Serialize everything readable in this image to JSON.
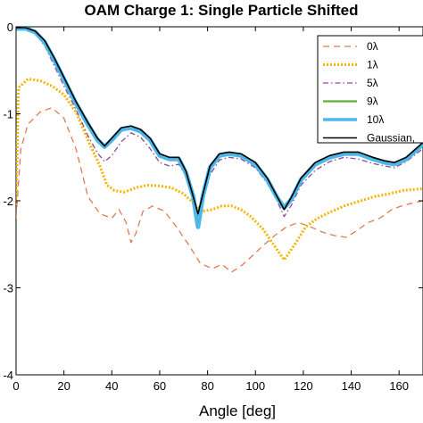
{
  "chart_data": {
    "type": "line",
    "title": "OAM Charge 1: Single Particle Shifted",
    "xlabel": "Angle [deg]",
    "ylabel": "",
    "xlim": [
      0,
      170
    ],
    "ylim": [
      -4,
      0
    ],
    "x_ticks": [
      0,
      20,
      40,
      60,
      80,
      100,
      120,
      140,
      160
    ],
    "x_tick_labels": [
      "0",
      "20",
      "40",
      "60",
      "80",
      "100",
      "120",
      "140",
      "160"
    ],
    "y_ticks": [
      0,
      -1,
      -2,
      -3,
      -4
    ],
    "y_tick_labels": [
      "0",
      "-1",
      "-2",
      "-3",
      "-4"
    ],
    "grid": false,
    "legend_position": "top-right",
    "series": [
      {
        "name": "0λ",
        "color": "#e07b4f",
        "dash": "7,5",
        "width": 1.3,
        "points": [
          [
            0,
            -2.2
          ],
          [
            2,
            -1.4
          ],
          [
            5,
            -1.12
          ],
          [
            10,
            -0.98
          ],
          [
            15,
            -0.93
          ],
          [
            20,
            -1.05
          ],
          [
            25,
            -1.4
          ],
          [
            30,
            -1.95
          ],
          [
            35,
            -2.15
          ],
          [
            40,
            -2.2
          ],
          [
            43,
            -2.1
          ],
          [
            46,
            -2.25
          ],
          [
            48,
            -2.48
          ],
          [
            50,
            -2.38
          ],
          [
            53,
            -2.12
          ],
          [
            57,
            -2.06
          ],
          [
            62,
            -2.12
          ],
          [
            67,
            -2.3
          ],
          [
            72,
            -2.5
          ],
          [
            77,
            -2.72
          ],
          [
            82,
            -2.78
          ],
          [
            86,
            -2.73
          ],
          [
            90,
            -2.82
          ],
          [
            94,
            -2.75
          ],
          [
            98,
            -2.65
          ],
          [
            103,
            -2.52
          ],
          [
            108,
            -2.4
          ],
          [
            113,
            -2.3
          ],
          [
            118,
            -2.25
          ],
          [
            123,
            -2.3
          ],
          [
            128,
            -2.36
          ],
          [
            133,
            -2.4
          ],
          [
            138,
            -2.42
          ],
          [
            142,
            -2.35
          ],
          [
            147,
            -2.25
          ],
          [
            152,
            -2.2
          ],
          [
            157,
            -2.1
          ],
          [
            162,
            -2.05
          ],
          [
            170,
            -2.0
          ]
        ]
      },
      {
        "name": "1λ",
        "color": "#f5b400",
        "dash": "2,2",
        "width": 3,
        "points": [
          [
            0,
            -2.05
          ],
          [
            1,
            -0.7
          ],
          [
            5,
            -0.6
          ],
          [
            10,
            -0.62
          ],
          [
            15,
            -0.68
          ],
          [
            20,
            -0.78
          ],
          [
            25,
            -0.98
          ],
          [
            30,
            -1.3
          ],
          [
            35,
            -1.6
          ],
          [
            38,
            -1.82
          ],
          [
            41,
            -1.88
          ],
          [
            45,
            -1.9
          ],
          [
            50,
            -1.85
          ],
          [
            55,
            -1.82
          ],
          [
            60,
            -1.83
          ],
          [
            65,
            -1.85
          ],
          [
            70,
            -1.92
          ],
          [
            75,
            -2.05
          ],
          [
            78,
            -2.12
          ],
          [
            82,
            -2.1
          ],
          [
            86,
            -2.06
          ],
          [
            90,
            -2.06
          ],
          [
            94,
            -2.1
          ],
          [
            98,
            -2.18
          ],
          [
            103,
            -2.32
          ],
          [
            108,
            -2.52
          ],
          [
            112,
            -2.68
          ],
          [
            116,
            -2.52
          ],
          [
            121,
            -2.3
          ],
          [
            126,
            -2.2
          ],
          [
            132,
            -2.12
          ],
          [
            138,
            -2.05
          ],
          [
            144,
            -2.0
          ],
          [
            150,
            -1.95
          ],
          [
            156,
            -1.92
          ],
          [
            162,
            -1.88
          ],
          [
            170,
            -1.86
          ]
        ]
      },
      {
        "name": "5λ",
        "color": "#8a4a9a",
        "dash": "6,3,1.5,3",
        "width": 1.3,
        "points": [
          [
            0,
            -0.02
          ],
          [
            4,
            -0.02
          ],
          [
            8,
            -0.08
          ],
          [
            12,
            -0.22
          ],
          [
            16,
            -0.45
          ],
          [
            20,
            -0.68
          ],
          [
            25,
            -0.95
          ],
          [
            30,
            -1.25
          ],
          [
            34,
            -1.45
          ],
          [
            37,
            -1.55
          ],
          [
            40,
            -1.48
          ],
          [
            44,
            -1.32
          ],
          [
            48,
            -1.22
          ],
          [
            52,
            -1.27
          ],
          [
            56,
            -1.4
          ],
          [
            60,
            -1.56
          ],
          [
            64,
            -1.6
          ],
          [
            68,
            -1.58
          ],
          [
            71,
            -1.72
          ],
          [
            74,
            -2.0
          ],
          [
            76,
            -2.2
          ],
          [
            78,
            -2.0
          ],
          [
            81,
            -1.7
          ],
          [
            85,
            -1.53
          ],
          [
            89,
            -1.5
          ],
          [
            94,
            -1.52
          ],
          [
            100,
            -1.62
          ],
          [
            105,
            -1.8
          ],
          [
            109,
            -2.0
          ],
          [
            112,
            -2.18
          ],
          [
            115,
            -2.05
          ],
          [
            119,
            -1.82
          ],
          [
            125,
            -1.65
          ],
          [
            131,
            -1.55
          ],
          [
            137,
            -1.5
          ],
          [
            143,
            -1.52
          ],
          [
            149,
            -1.57
          ],
          [
            154,
            -1.6
          ],
          [
            158,
            -1.62
          ],
          [
            163,
            -1.55
          ],
          [
            170,
            -1.4
          ]
        ]
      },
      {
        "name": "9λ",
        "color": "#5fae35",
        "dash": "",
        "width": 2.2,
        "points": [
          [
            0,
            -0.02
          ],
          [
            4,
            -0.02
          ],
          [
            8,
            -0.06
          ],
          [
            12,
            -0.18
          ],
          [
            16,
            -0.38
          ],
          [
            20,
            -0.6
          ],
          [
            25,
            -0.88
          ],
          [
            30,
            -1.12
          ],
          [
            34,
            -1.3
          ],
          [
            37,
            -1.38
          ],
          [
            40,
            -1.3
          ],
          [
            44,
            -1.18
          ],
          [
            48,
            -1.16
          ],
          [
            52,
            -1.2
          ],
          [
            56,
            -1.3
          ],
          [
            60,
            -1.48
          ],
          [
            64,
            -1.52
          ],
          [
            68,
            -1.52
          ],
          [
            71,
            -1.68
          ],
          [
            74,
            -1.95
          ],
          [
            76,
            -2.2
          ],
          [
            78,
            -1.95
          ],
          [
            81,
            -1.62
          ],
          [
            85,
            -1.48
          ],
          [
            89,
            -1.46
          ],
          [
            94,
            -1.48
          ],
          [
            100,
            -1.58
          ],
          [
            105,
            -1.76
          ],
          [
            109,
            -1.96
          ],
          [
            112,
            -2.08
          ],
          [
            115,
            -1.98
          ],
          [
            119,
            -1.76
          ],
          [
            125,
            -1.58
          ],
          [
            131,
            -1.5
          ],
          [
            137,
            -1.46
          ],
          [
            143,
            -1.46
          ],
          [
            149,
            -1.52
          ],
          [
            154,
            -1.56
          ],
          [
            158,
            -1.58
          ],
          [
            163,
            -1.52
          ],
          [
            170,
            -1.35
          ]
        ]
      },
      {
        "name": "10λ",
        "color": "#4db8e8",
        "dash": "",
        "width": 5,
        "points": [
          [
            0,
            -0.02
          ],
          [
            4,
            -0.02
          ],
          [
            8,
            -0.06
          ],
          [
            12,
            -0.18
          ],
          [
            16,
            -0.38
          ],
          [
            20,
            -0.6
          ],
          [
            25,
            -0.88
          ],
          [
            30,
            -1.12
          ],
          [
            34,
            -1.3
          ],
          [
            37,
            -1.38
          ],
          [
            40,
            -1.3
          ],
          [
            44,
            -1.18
          ],
          [
            48,
            -1.16
          ],
          [
            52,
            -1.2
          ],
          [
            56,
            -1.3
          ],
          [
            60,
            -1.48
          ],
          [
            64,
            -1.52
          ],
          [
            68,
            -1.52
          ],
          [
            71,
            -1.68
          ],
          [
            74,
            -1.95
          ],
          [
            76,
            -2.3
          ],
          [
            78,
            -1.95
          ],
          [
            81,
            -1.62
          ],
          [
            85,
            -1.48
          ],
          [
            89,
            -1.46
          ],
          [
            94,
            -1.48
          ],
          [
            100,
            -1.58
          ],
          [
            105,
            -1.76
          ],
          [
            109,
            -1.96
          ],
          [
            112,
            -2.08
          ],
          [
            115,
            -1.98
          ],
          [
            119,
            -1.76
          ],
          [
            125,
            -1.58
          ],
          [
            131,
            -1.5
          ],
          [
            137,
            -1.46
          ],
          [
            143,
            -1.46
          ],
          [
            149,
            -1.52
          ],
          [
            154,
            -1.56
          ],
          [
            158,
            -1.58
          ],
          [
            163,
            -1.52
          ],
          [
            170,
            -1.35
          ]
        ]
      },
      {
        "name": "Gaussian,",
        "color": "#000000",
        "dash": "",
        "width": 1.6,
        "points": [
          [
            0,
            -0.01
          ],
          [
            4,
            -0.01
          ],
          [
            8,
            -0.05
          ],
          [
            12,
            -0.16
          ],
          [
            16,
            -0.36
          ],
          [
            20,
            -0.58
          ],
          [
            25,
            -0.86
          ],
          [
            30,
            -1.1
          ],
          [
            34,
            -1.28
          ],
          [
            37,
            -1.37
          ],
          [
            40,
            -1.28
          ],
          [
            44,
            -1.16
          ],
          [
            48,
            -1.14
          ],
          [
            52,
            -1.18
          ],
          [
            56,
            -1.28
          ],
          [
            60,
            -1.46
          ],
          [
            64,
            -1.5
          ],
          [
            68,
            -1.5
          ],
          [
            71,
            -1.66
          ],
          [
            74,
            -1.95
          ],
          [
            76,
            -2.15
          ],
          [
            78,
            -1.93
          ],
          [
            81,
            -1.6
          ],
          [
            85,
            -1.46
          ],
          [
            89,
            -1.44
          ],
          [
            94,
            -1.46
          ],
          [
            100,
            -1.56
          ],
          [
            105,
            -1.74
          ],
          [
            109,
            -1.95
          ],
          [
            112,
            -2.1
          ],
          [
            115,
            -1.96
          ],
          [
            119,
            -1.74
          ],
          [
            125,
            -1.56
          ],
          [
            131,
            -1.48
          ],
          [
            137,
            -1.44
          ],
          [
            143,
            -1.44
          ],
          [
            149,
            -1.5
          ],
          [
            154,
            -1.54
          ],
          [
            158,
            -1.56
          ],
          [
            163,
            -1.5
          ],
          [
            170,
            -1.33
          ]
        ]
      }
    ]
  }
}
